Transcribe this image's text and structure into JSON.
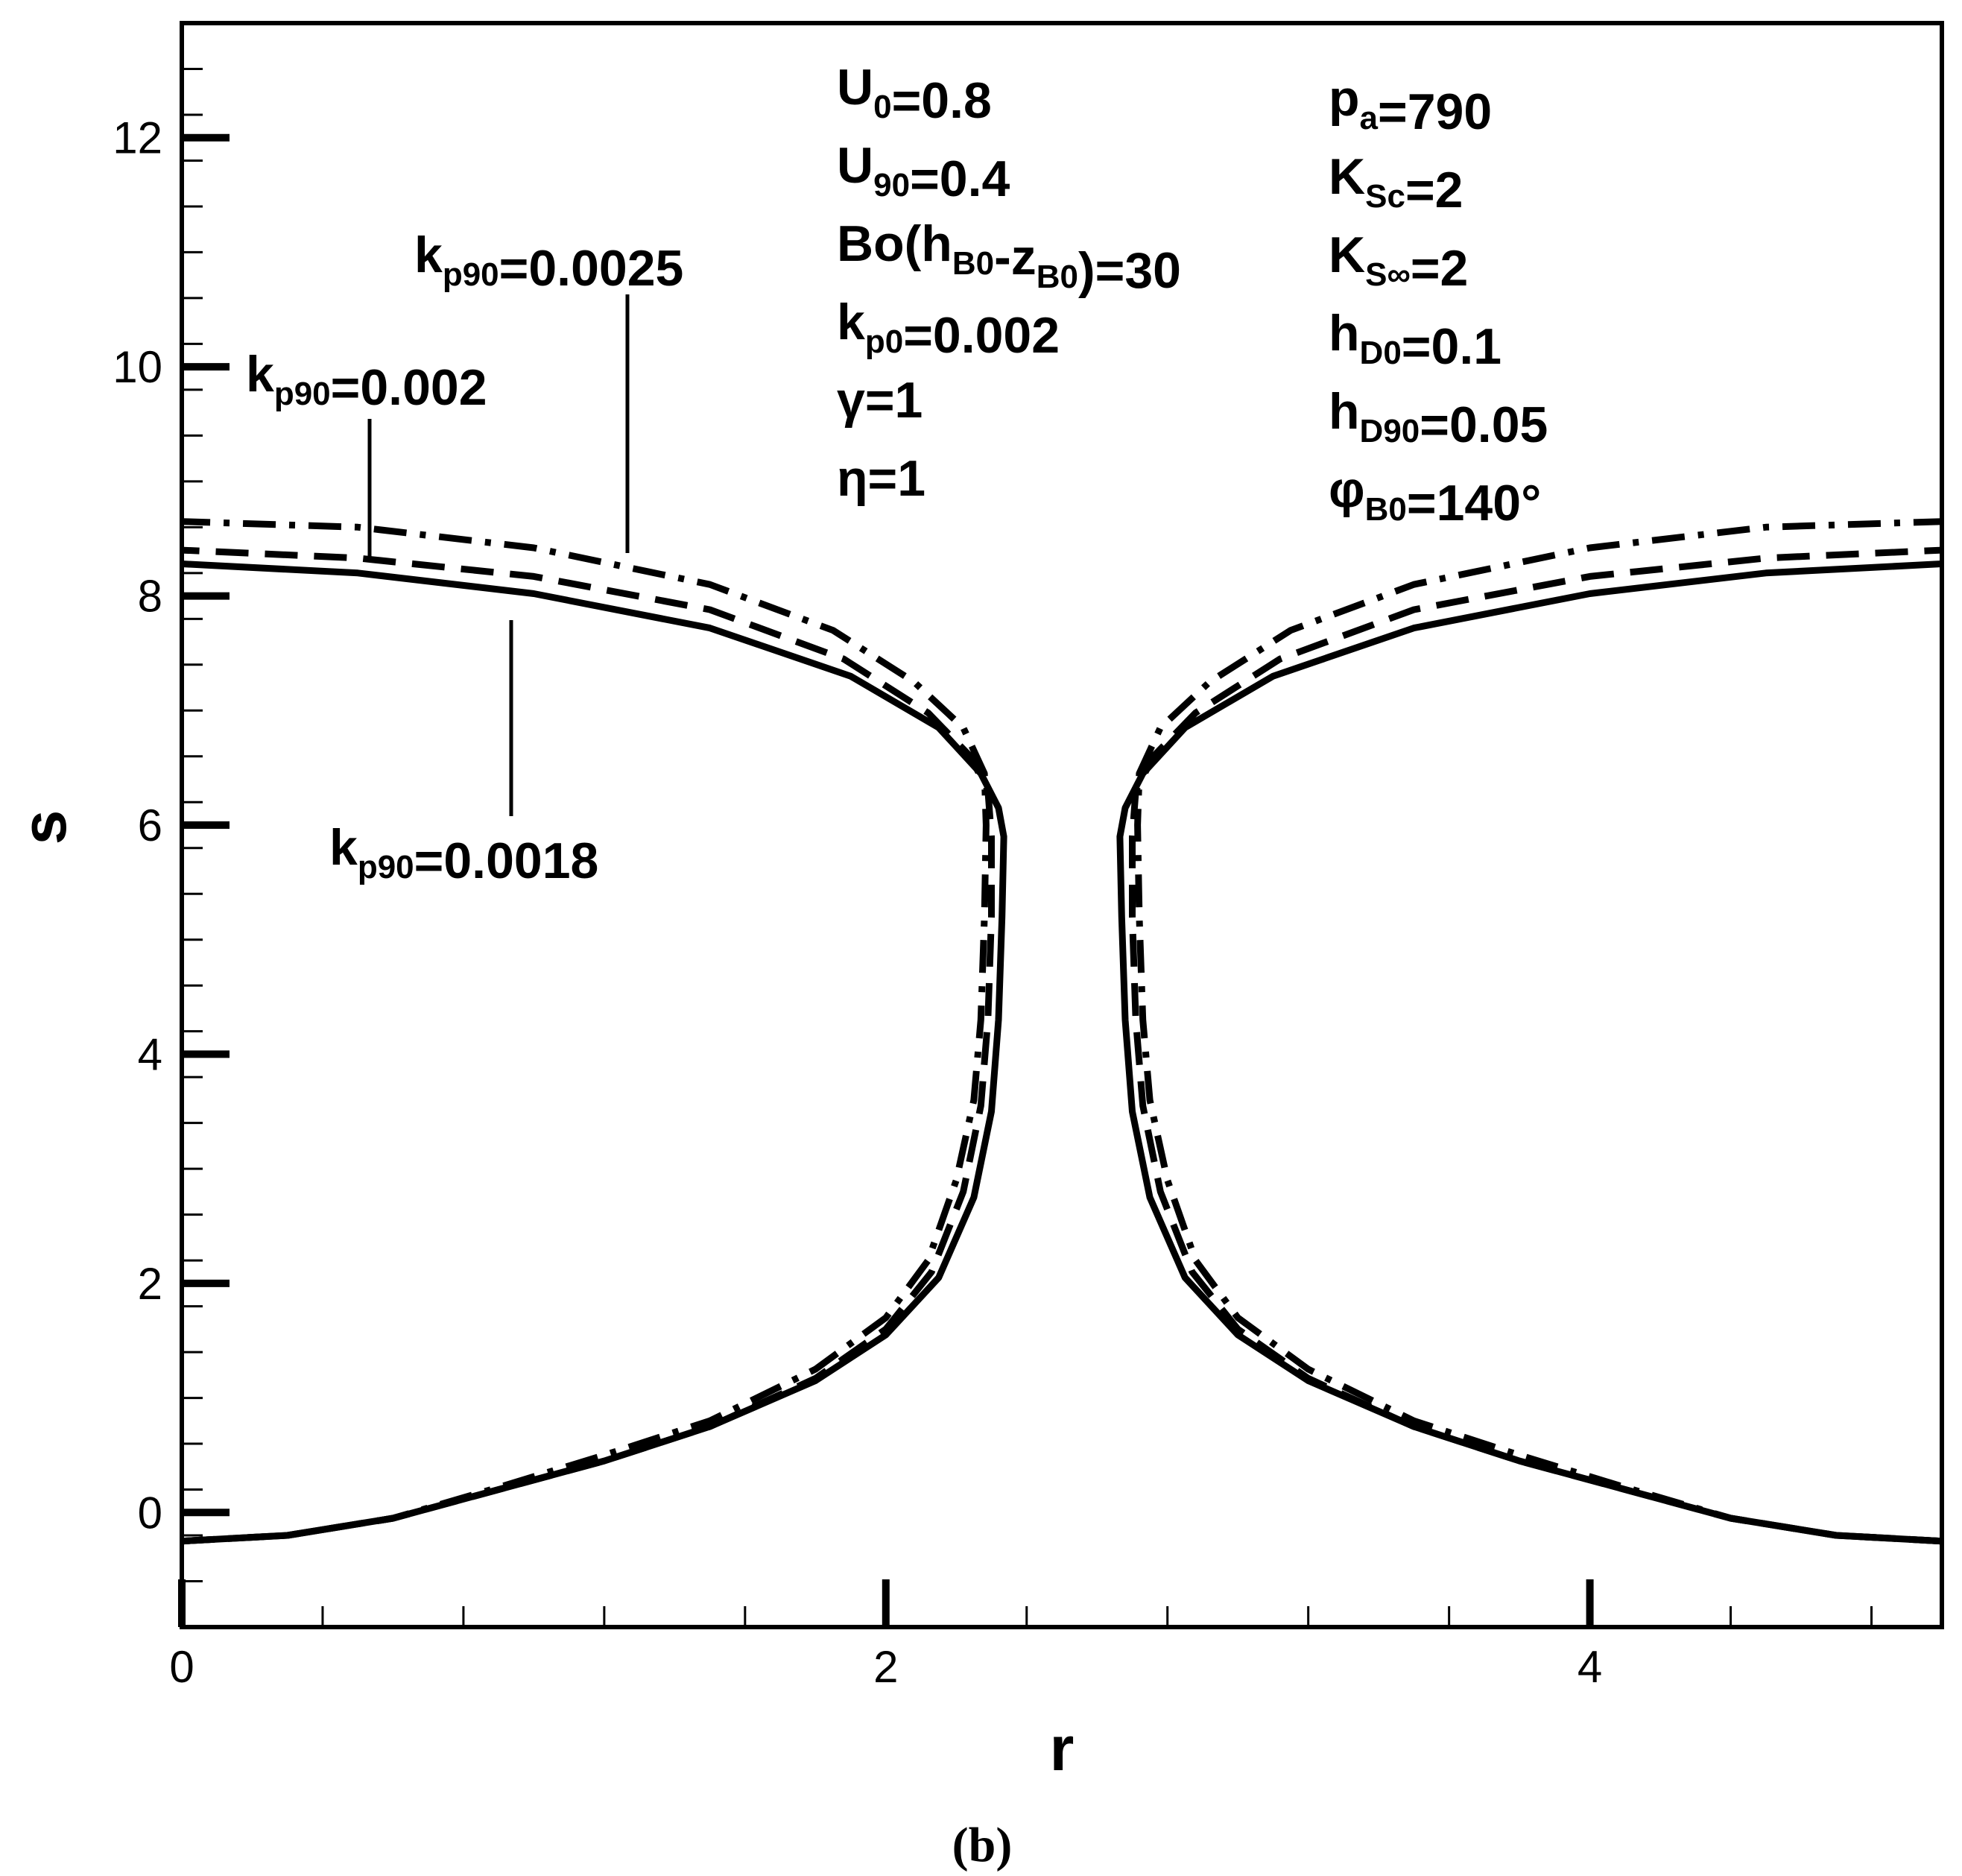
{
  "chart_data": {
    "type": "line",
    "xlabel": "r",
    "ylabel": "s",
    "xlim": [
      0,
      5
    ],
    "ylim": [
      -1,
      13
    ],
    "xticks_major": [
      0,
      2,
      4
    ],
    "xtick_labels": [
      "0",
      "2",
      "4"
    ],
    "yticks_major": [
      0,
      2,
      4,
      6,
      8,
      10,
      12
    ],
    "ytick_labels": [
      "0",
      "2",
      "4",
      "6",
      "8",
      "10",
      "12"
    ],
    "minor_step": 0.4,
    "grid": false,
    "caption": "(b)",
    "parameters_left": [
      {
        "base": "U",
        "sub": "0",
        "rest": "=0.8"
      },
      {
        "base": "U",
        "sub": "90",
        "rest": "=0.4"
      },
      {
        "base": "Bo(h",
        "sub": "B0",
        "mid": "-z",
        "sub2": "B0",
        "rest": ")=30"
      },
      {
        "base": "k",
        "sub": "p0",
        "rest": "=0.002"
      },
      {
        "base": "γ",
        "sub": "",
        "rest": "=1"
      },
      {
        "base": "η",
        "sub": "",
        "rest": "=1"
      }
    ],
    "parameters_right": [
      {
        "base": "p",
        "sub": "a",
        "rest": "=790"
      },
      {
        "base": "K",
        "sub": "Sc",
        "rest": "=2"
      },
      {
        "base": "K",
        "sub": "S∞",
        "rest": "=2"
      },
      {
        "base": "h",
        "sub": "D0",
        "rest": "=0.1"
      },
      {
        "base": "h",
        "sub": "D90",
        "rest": "=0.05"
      },
      {
        "base": "φ",
        "sub": "B0",
        "rest": "=140°"
      }
    ],
    "series": [
      {
        "name": "kp90=0.0018",
        "label": {
          "base": "k",
          "sub": "p90",
          "rest": "=0.0018"
        },
        "style": "solid",
        "left_branch": [
          [
            0.0,
            -0.25
          ],
          [
            0.3,
            -0.2
          ],
          [
            0.6,
            -0.05
          ],
          [
            0.9,
            0.2
          ],
          [
            1.2,
            0.45
          ],
          [
            1.5,
            0.75
          ],
          [
            1.8,
            1.15
          ],
          [
            2.0,
            1.55
          ],
          [
            2.15,
            2.05
          ],
          [
            2.25,
            2.75
          ],
          [
            2.3,
            3.5
          ],
          [
            2.32,
            4.3
          ],
          [
            2.33,
            5.2
          ],
          [
            2.335,
            5.9
          ],
          [
            2.32,
            6.15
          ],
          [
            2.27,
            6.45
          ],
          [
            2.15,
            6.85
          ],
          [
            1.9,
            7.3
          ],
          [
            1.5,
            7.72
          ],
          [
            1.0,
            8.02
          ],
          [
            0.5,
            8.2
          ],
          [
            0.0,
            8.28
          ]
        ]
      },
      {
        "name": "kp90=0.002",
        "label": {
          "base": "k",
          "sub": "p90",
          "rest": "=0.002"
        },
        "style": "dashed",
        "left_branch": [
          [
            0.0,
            -0.25
          ],
          [
            0.3,
            -0.2
          ],
          [
            0.6,
            -0.05
          ],
          [
            0.9,
            0.2
          ],
          [
            1.2,
            0.45
          ],
          [
            1.5,
            0.75
          ],
          [
            1.8,
            1.17
          ],
          [
            2.0,
            1.6
          ],
          [
            2.13,
            2.1
          ],
          [
            2.22,
            2.8
          ],
          [
            2.27,
            3.55
          ],
          [
            2.29,
            4.3
          ],
          [
            2.3,
            5.2
          ],
          [
            2.3,
            5.9
          ],
          [
            2.29,
            6.3
          ],
          [
            2.24,
            6.6
          ],
          [
            2.12,
            6.98
          ],
          [
            1.88,
            7.45
          ],
          [
            1.5,
            7.88
          ],
          [
            1.0,
            8.17
          ],
          [
            0.5,
            8.33
          ],
          [
            0.0,
            8.4
          ]
        ]
      },
      {
        "name": "kp90=0.0025",
        "label": {
          "base": "k",
          "sub": "p90",
          "rest": "=0.0025"
        },
        "style": "dashdot",
        "left_branch": [
          [
            0.0,
            -0.25
          ],
          [
            0.3,
            -0.2
          ],
          [
            0.6,
            -0.05
          ],
          [
            0.9,
            0.22
          ],
          [
            1.2,
            0.5
          ],
          [
            1.5,
            0.8
          ],
          [
            1.8,
            1.25
          ],
          [
            2.0,
            1.7
          ],
          [
            2.12,
            2.2
          ],
          [
            2.2,
            2.9
          ],
          [
            2.25,
            3.6
          ],
          [
            2.27,
            4.3
          ],
          [
            2.28,
            5.2
          ],
          [
            2.285,
            6.0
          ],
          [
            2.28,
            6.45
          ],
          [
            2.22,
            6.85
          ],
          [
            2.08,
            7.25
          ],
          [
            1.85,
            7.7
          ],
          [
            1.5,
            8.1
          ],
          [
            1.0,
            8.42
          ],
          [
            0.5,
            8.6
          ],
          [
            0.0,
            8.65
          ]
        ]
      }
    ]
  }
}
